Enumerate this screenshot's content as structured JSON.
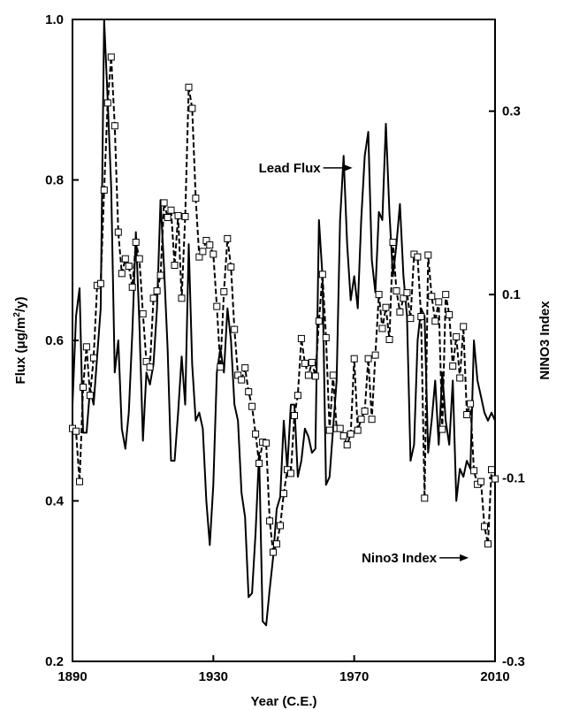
{
  "chart_data": {
    "type": "line",
    "xlabel": "Year (C.E.)",
    "ylabel_left_parts": [
      "Flux (",
      "μ",
      "g/m",
      "2",
      "/y)"
    ],
    "ylabel_right": "NINO3 Index",
    "xlim": [
      1890,
      2010
    ],
    "ylim_left": [
      0.2,
      1.0
    ],
    "ylim_right": [
      -0.3,
      0.4
    ],
    "x_ticks": [
      1890,
      1930,
      1970,
      2010
    ],
    "x_tick_labels": [
      "1890",
      "1930",
      "1970",
      "2010"
    ],
    "y_left_ticks": [
      0.2,
      0.4,
      0.6,
      0.8,
      1.0
    ],
    "y_left_tick_labels": [
      "0.2",
      "0.4",
      "0.6",
      "0.8",
      "1.0"
    ],
    "y_right_ticks": [
      -0.3,
      -0.1,
      0.1,
      0.3
    ],
    "y_right_tick_labels": [
      "-0.3",
      "-0.1",
      "0.1",
      "0.3"
    ],
    "annotations": [
      {
        "text": "Lead Flux",
        "points_to_series": "lead_flux",
        "arrow_x": 1970,
        "arrow_y": 0.815
      },
      {
        "text": "Nino3 Index",
        "points_to_series": "nino3",
        "arrow_x": 2003,
        "arrow_y": 0.329
      }
    ],
    "series": [
      {
        "key": "lead_flux",
        "axis": "left",
        "style": "solid",
        "x": [
          1890,
          1891,
          1892,
          1893,
          1894,
          1895,
          1896,
          1897,
          1898,
          1899,
          1900,
          1901,
          1902,
          1903,
          1904,
          1905,
          1906,
          1907,
          1908,
          1909,
          1910,
          1911,
          1912,
          1913,
          1914,
          1915,
          1916,
          1917,
          1918,
          1919,
          1920,
          1921,
          1922,
          1923,
          1924,
          1925,
          1926,
          1927,
          1928,
          1929,
          1930,
          1931,
          1932,
          1933,
          1934,
          1935,
          1936,
          1937,
          1938,
          1939,
          1940,
          1941,
          1942,
          1943,
          1944,
          1945,
          1946,
          1947,
          1948,
          1949,
          1950,
          1951,
          1952,
          1953,
          1954,
          1955,
          1956,
          1957,
          1958,
          1959,
          1960,
          1961,
          1962,
          1963,
          1964,
          1965,
          1966,
          1967,
          1968,
          1969,
          1970,
          1971,
          1972,
          1973,
          1974,
          1975,
          1976,
          1977,
          1978,
          1979,
          1980,
          1981,
          1982,
          1983,
          1984,
          1985,
          1986,
          1987,
          1988,
          1989,
          1990,
          1991,
          1992,
          1993,
          1994,
          1995,
          1996,
          1997,
          1998,
          1999,
          2000,
          2001,
          2002,
          2003,
          2004,
          2005,
          2006,
          2007,
          2008,
          2009,
          2010
        ],
        "values": [
          0.52,
          0.63,
          0.665,
          0.485,
          0.485,
          0.54,
          0.52,
          0.58,
          0.64,
          1.0,
          0.9,
          0.79,
          0.56,
          0.6,
          0.49,
          0.465,
          0.51,
          0.61,
          0.735,
          0.62,
          0.475,
          0.56,
          0.545,
          0.57,
          0.64,
          0.775,
          0.69,
          0.59,
          0.45,
          0.45,
          0.51,
          0.58,
          0.52,
          0.72,
          0.57,
          0.5,
          0.51,
          0.49,
          0.4,
          0.345,
          0.42,
          0.56,
          0.59,
          0.56,
          0.64,
          0.6,
          0.52,
          0.5,
          0.41,
          0.38,
          0.28,
          0.285,
          0.36,
          0.46,
          0.25,
          0.245,
          0.29,
          0.33,
          0.39,
          0.405,
          0.5,
          0.44,
          0.52,
          0.52,
          0.43,
          0.45,
          0.49,
          0.48,
          0.46,
          0.465,
          0.75,
          0.68,
          0.42,
          0.43,
          0.49,
          0.55,
          0.75,
          0.83,
          0.72,
          0.65,
          0.68,
          0.64,
          0.75,
          0.83,
          0.86,
          0.7,
          0.66,
          0.76,
          0.75,
          0.87,
          0.76,
          0.68,
          0.72,
          0.77,
          0.68,
          0.63,
          0.45,
          0.47,
          0.6,
          0.64,
          0.63,
          0.46,
          0.5,
          0.55,
          0.47,
          0.56,
          0.5,
          0.47,
          0.55,
          0.4,
          0.44,
          0.43,
          0.45,
          0.44,
          0.6,
          0.55,
          0.53,
          0.51,
          0.5,
          0.51,
          0.5
        ],
        "show_markers": false
      },
      {
        "key": "nino3",
        "axis": "right",
        "style": "dashed",
        "x": [
          1890,
          1891,
          1892,
          1893,
          1894,
          1895,
          1896,
          1897,
          1898,
          1899,
          1900,
          1901,
          1902,
          1903,
          1904,
          1905,
          1906,
          1907,
          1908,
          1909,
          1910,
          1911,
          1912,
          1913,
          1914,
          1915,
          1916,
          1917,
          1918,
          1919,
          1920,
          1921,
          1922,
          1923,
          1924,
          1925,
          1926,
          1927,
          1928,
          1929,
          1930,
          1931,
          1932,
          1933,
          1934,
          1935,
          1936,
          1937,
          1938,
          1939,
          1940,
          1941,
          1942,
          1943,
          1944,
          1945,
          1946,
          1947,
          1948,
          1949,
          1950,
          1951,
          1952,
          1953,
          1954,
          1955,
          1956,
          1957,
          1958,
          1959,
          1960,
          1961,
          1962,
          1963,
          1964,
          1965,
          1966,
          1967,
          1968,
          1969,
          1970,
          1971,
          1972,
          1973,
          1974,
          1975,
          1976,
          1977,
          1978,
          1979,
          1980,
          1981,
          1982,
          1983,
          1984,
          1985,
          1986,
          1987,
          1988,
          1989,
          1990,
          1991,
          1992,
          1993,
          1994,
          1995,
          1996,
          1997,
          1998,
          1999,
          2000,
          2001,
          2002,
          2003,
          2004,
          2005,
          2006,
          2007,
          2008,
          2009,
          2010
        ],
        "values": [
          -0.046,
          -0.049,
          -0.104,
          -0.001,
          0.043,
          -0.01,
          0.031,
          0.11,
          0.112,
          0.214,
          0.309,
          0.359,
          0.284,
          0.168,
          0.123,
          0.139,
          0.131,
          0.108,
          0.157,
          0.139,
          0.079,
          0.027,
          0.021,
          0.096,
          0.104,
          0.121,
          0.2,
          0.184,
          0.192,
          0.132,
          0.186,
          0.096,
          0.185,
          0.326,
          0.303,
          0.205,
          0.141,
          0.147,
          0.159,
          0.154,
          0.144,
          0.087,
          0.021,
          0.103,
          0.161,
          0.13,
          0.062,
          0.012,
          0.007,
          0.02,
          -0.006,
          -0.022,
          -0.052,
          -0.084,
          -0.061,
          -0.062,
          -0.147,
          -0.181,
          -0.172,
          -0.152,
          -0.117,
          -0.091,
          -0.095,
          -0.032,
          -0.01,
          0.052,
          0.025,
          0.012,
          0.026,
          0.011,
          0.071,
          0.122,
          0.053,
          -0.048,
          0.012,
          -0.046,
          -0.046,
          -0.054,
          -0.064,
          -0.052,
          0.03,
          -0.048,
          -0.036,
          -0.027,
          0.03,
          -0.036,
          0.034,
          0.1,
          0.063,
          0.086,
          0.051,
          0.157,
          0.104,
          0.081,
          0.096,
          0.102,
          0.074,
          0.144,
          0.141,
          0.076,
          -0.122,
          0.143,
          0.098,
          0.071,
          0.092,
          -0.047,
          0.1,
          0.078,
          0.022,
          0.054,
          0.009,
          0.065,
          -0.031,
          -0.019,
          -0.092,
          -0.107,
          -0.104,
          -0.153,
          -0.172,
          -0.091,
          -0.101
        ]
      }
    ]
  }
}
